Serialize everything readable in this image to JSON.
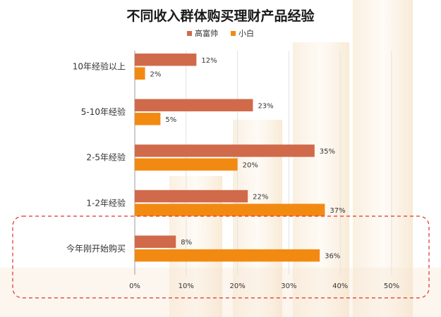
{
  "chart_data": {
    "type": "bar",
    "orientation": "horizontal",
    "title": "不同收入群体购买理财产品经验",
    "categories": [
      "10年经验以上",
      "5-10年经验",
      "2-5年经验",
      "1-2年经验",
      "今年刚开始购买"
    ],
    "series": [
      {
        "name": "高富帅",
        "values": [
          12,
          23,
          35,
          22,
          8
        ],
        "color": "#d06a4a"
      },
      {
        "name": "小白",
        "values": [
          2,
          5,
          20,
          37,
          36
        ],
        "color": "#f28a12"
      }
    ],
    "value_suffix": "%",
    "xlim": [
      0,
      50
    ],
    "xticks": [
      0,
      10,
      20,
      30,
      40,
      50
    ],
    "grid": true,
    "legend_position": "top",
    "highlight_category": "今年刚开始购买"
  }
}
